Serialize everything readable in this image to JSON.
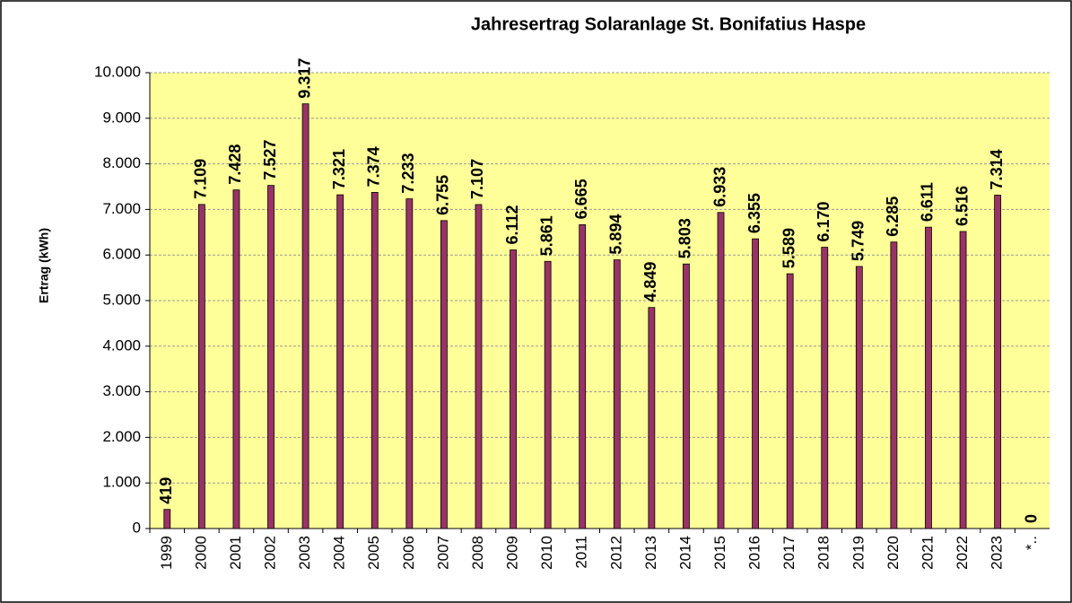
{
  "chart_data": {
    "type": "bar",
    "title": "Jahresertrag Solaranlage St. Bonifatius Haspe",
    "y_label": "Ertrag (kWh)",
    "categories": [
      "1999",
      "2000",
      "2001",
      "2002",
      "2003",
      "2004",
      "2005",
      "2006",
      "2007",
      "2008",
      "2009",
      "2010",
      "2011",
      "2012",
      "2013",
      "2014",
      "2015",
      "2016",
      "2017",
      "2018",
      "2019",
      "2020",
      "2021",
      "2022",
      "2023",
      "*.."
    ],
    "values": [
      419,
      7109,
      7428,
      7527,
      9317,
      7321,
      7374,
      7233,
      6755,
      7107,
      6112,
      5861,
      6665,
      5894,
      4849,
      5803,
      6933,
      6355,
      5589,
      6170,
      5749,
      6285,
      6611,
      6516,
      7314,
      0
    ],
    "value_labels": [
      "419",
      "7.109",
      "7.428",
      "7.527",
      "9.317",
      "7.321",
      "7.374",
      "7.233",
      "6.755",
      "7.107",
      "6.112",
      "5.861",
      "6.665",
      "5.894",
      "4.849",
      "5.803",
      "6.933",
      "6.355",
      "5.589",
      "6.170",
      "5.749",
      "6.285",
      "6.611",
      "6.516",
      "7.314",
      "0"
    ],
    "color": "#993366",
    "ylim": [
      0,
      10000
    ],
    "yticks": [
      0,
      {
        "value": 1000,
        "label": "1.000"
      },
      {
        "value": 2000,
        "label": "2.000"
      },
      {
        "value": 3000,
        "label": "3.000"
      },
      {
        "value": 4000,
        "label": "4.000"
      },
      {
        "value": 5000,
        "label": "5.000"
      },
      {
        "value": 6000,
        "label": "6.000"
      },
      {
        "value": 7000,
        "label": "7.000"
      },
      {
        "value": 8000,
        "label": "8.000"
      },
      {
        "value": 9000,
        "label": "9.000"
      },
      {
        "value": 10000,
        "label": "10.000"
      }
    ],
    "grid": true
  }
}
